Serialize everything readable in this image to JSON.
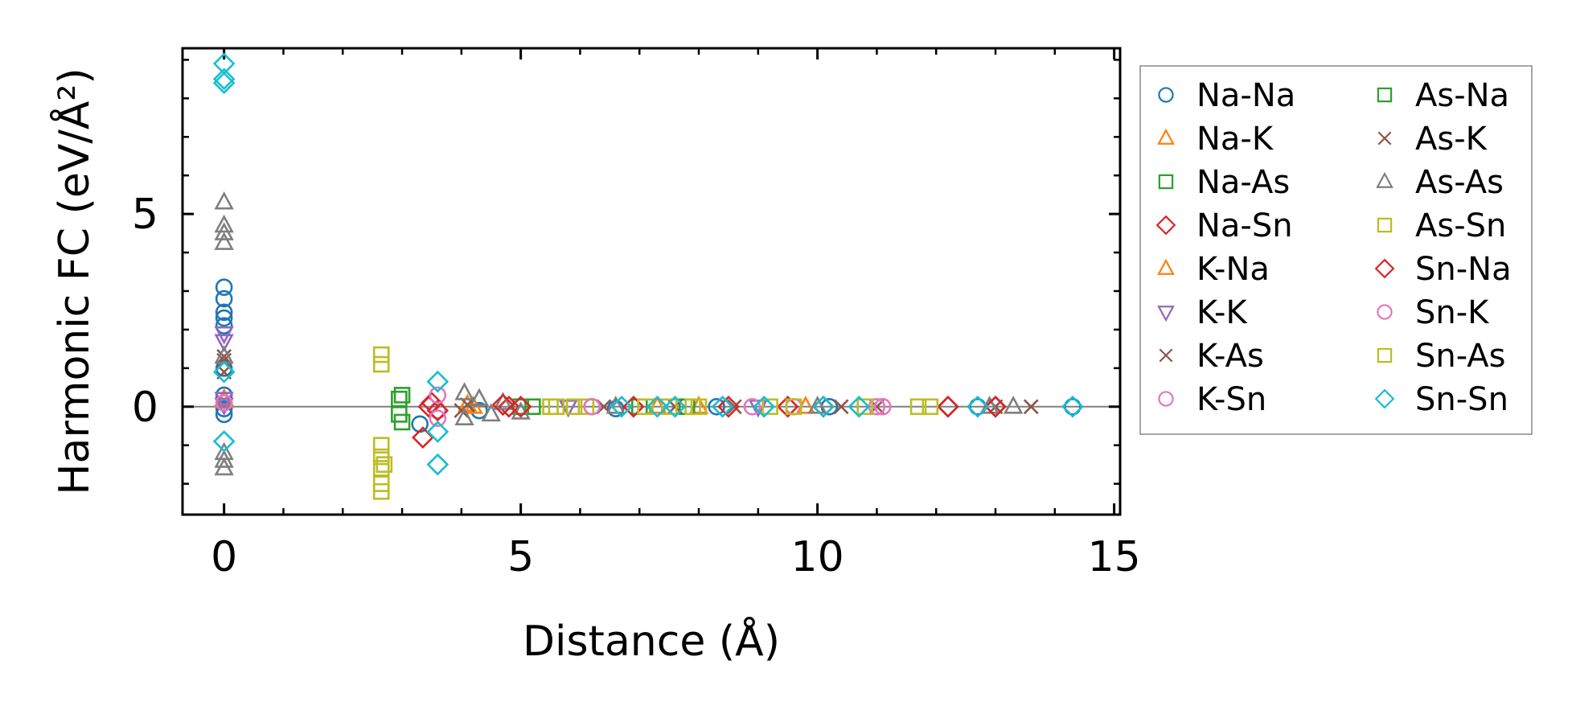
{
  "chart_data": {
    "type": "scatter",
    "title": "",
    "xlabel": "Distance (Å)",
    "ylabel": "Harmonic FC (eV/Å²)",
    "xlim": [
      -0.7,
      15.1
    ],
    "ylim": [
      -2.8,
      9.3
    ],
    "xticks": [
      0,
      5,
      10,
      15
    ],
    "xtick_labels": [
      "0",
      "5",
      "10",
      "15"
    ],
    "yticks": [
      0,
      5
    ],
    "ytick_labels": [
      "0",
      "5"
    ],
    "minor_xtick_step": 1,
    "minor_ytick_step": 1,
    "zero_line": true,
    "legend": {
      "location": "outside-right",
      "columns": 2
    },
    "series": [
      {
        "name": "Na-Na",
        "marker": "circle",
        "color": "#1f77b4",
        "points": [
          [
            0,
            3.1
          ],
          [
            0,
            2.8
          ],
          [
            0,
            2.45
          ],
          [
            0,
            2.3
          ],
          [
            0,
            2.1
          ],
          [
            0,
            1.0
          ],
          [
            0,
            0.3
          ],
          [
            0,
            0.1
          ],
          [
            0,
            -0.05
          ],
          [
            0,
            -0.2
          ],
          [
            3.3,
            -0.45
          ],
          [
            4.3,
            -0.1
          ],
          [
            6.6,
            -0.05
          ],
          [
            8.3,
            0.0
          ],
          [
            10.2,
            0.0
          ],
          [
            12.7,
            0.0
          ],
          [
            14.3,
            0.0
          ]
        ]
      },
      {
        "name": "Na-K",
        "marker": "triangle-up",
        "color": "#ff7f0e",
        "points": [
          [
            0,
            0.2
          ],
          [
            4.1,
            0.05
          ],
          [
            7.3,
            0.0
          ],
          [
            9.8,
            0.0
          ]
        ]
      },
      {
        "name": "Na-As",
        "marker": "square",
        "color": "#2ca02c",
        "points": [
          [
            3.0,
            0.3
          ],
          [
            5.0,
            0.0
          ],
          [
            7.0,
            0.0
          ]
        ]
      },
      {
        "name": "Na-Sn",
        "marker": "diamond",
        "color": "#d62728",
        "points": [
          [
            3.35,
            -0.8
          ],
          [
            3.5,
            0.1
          ],
          [
            4.8,
            0.0
          ],
          [
            6.9,
            0.0
          ],
          [
            9.5,
            0.0
          ],
          [
            12.2,
            0.0
          ],
          [
            13.0,
            0.0
          ]
        ]
      },
      {
        "name": "K-Na",
        "marker": "triangle-up",
        "color": "#ff7f0e",
        "points": [
          [
            0,
            0.15
          ],
          [
            4.2,
            0.0
          ],
          [
            8.0,
            0.0
          ]
        ]
      },
      {
        "name": "K-K",
        "marker": "triangle-down",
        "color": "#9467bd",
        "points": [
          [
            0,
            1.9
          ],
          [
            0,
            1.7
          ],
          [
            0,
            0.2
          ],
          [
            0,
            0.05
          ],
          [
            5.8,
            0.0
          ],
          [
            9.0,
            0.0
          ]
        ]
      },
      {
        "name": "K-As",
        "marker": "x",
        "color": "#8c564b",
        "points": [
          [
            0,
            1.3
          ],
          [
            4.0,
            -0.1
          ],
          [
            6.4,
            0.0
          ],
          [
            8.6,
            0.0
          ],
          [
            11.0,
            0.0
          ],
          [
            13.6,
            0.0
          ]
        ]
      },
      {
        "name": "K-Sn",
        "marker": "circle",
        "color": "#e377c2",
        "points": [
          [
            3.6,
            -0.1
          ],
          [
            6.2,
            0.0
          ],
          [
            9.6,
            0.0
          ],
          [
            11.1,
            0.0
          ]
        ]
      },
      {
        "name": "As-Na",
        "marker": "square",
        "color": "#2ca02c",
        "points": [
          [
            2.95,
            0.2
          ],
          [
            2.95,
            -0.2
          ],
          [
            3.0,
            -0.4
          ],
          [
            5.2,
            0.0
          ],
          [
            7.8,
            0.0
          ]
        ]
      },
      {
        "name": "As-K",
        "marker": "x",
        "color": "#8c564b",
        "points": [
          [
            0,
            1.2
          ],
          [
            0,
            0.9
          ],
          [
            4.1,
            0.05
          ],
          [
            7.6,
            0.0
          ],
          [
            10.4,
            0.0
          ],
          [
            13.0,
            0.0
          ]
        ]
      },
      {
        "name": "As-As",
        "marker": "triangle-up",
        "color": "#7f7f7f",
        "points": [
          [
            0,
            5.3
          ],
          [
            0,
            4.7
          ],
          [
            0,
            4.5
          ],
          [
            0,
            4.25
          ],
          [
            0,
            1.3
          ],
          [
            0,
            -1.2
          ],
          [
            0,
            -1.4
          ],
          [
            0,
            -1.6
          ],
          [
            4.05,
            0.35
          ],
          [
            4.05,
            -0.3
          ],
          [
            4.3,
            0.2
          ],
          [
            4.5,
            -0.2
          ],
          [
            4.7,
            0.1
          ],
          [
            5.0,
            -0.15
          ],
          [
            6.6,
            0.0
          ],
          [
            10.0,
            0.0
          ],
          [
            12.9,
            0.0
          ],
          [
            13.3,
            0.0
          ]
        ]
      },
      {
        "name": "As-Sn",
        "marker": "square",
        "color": "#bcbd22",
        "points": [
          [
            2.65,
            1.35
          ],
          [
            2.65,
            1.1
          ],
          [
            2.65,
            -1.0
          ],
          [
            2.65,
            -1.3
          ],
          [
            2.65,
            -1.6
          ],
          [
            2.65,
            -2.0
          ],
          [
            2.65,
            -2.2
          ],
          [
            5.5,
            0.0
          ],
          [
            6.1,
            0.0
          ],
          [
            7.9,
            0.0
          ],
          [
            9.2,
            0.0
          ],
          [
            11.7,
            0.0
          ]
        ]
      },
      {
        "name": "Sn-Na",
        "marker": "diamond",
        "color": "#d62728",
        "points": [
          [
            3.45,
            0.0
          ],
          [
            3.6,
            -0.1
          ],
          [
            4.7,
            0.05
          ],
          [
            5.0,
            0.0
          ],
          [
            8.5,
            0.0
          ],
          [
            10.1,
            0.0
          ],
          [
            12.2,
            0.0
          ],
          [
            13.0,
            0.0
          ]
        ]
      },
      {
        "name": "Sn-K",
        "marker": "circle",
        "color": "#e377c2",
        "points": [
          [
            0,
            0.1
          ],
          [
            3.6,
            0.3
          ],
          [
            3.6,
            -0.3
          ],
          [
            6.2,
            0.0
          ],
          [
            8.9,
            0.0
          ],
          [
            11.0,
            0.0
          ]
        ]
      },
      {
        "name": "Sn-As",
        "marker": "square",
        "color": "#bcbd22",
        "points": [
          [
            2.7,
            -1.5
          ],
          [
            5.6,
            0.0
          ],
          [
            5.9,
            0.0
          ],
          [
            7.1,
            0.0
          ],
          [
            7.5,
            0.0
          ],
          [
            8.0,
            0.0
          ],
          [
            9.6,
            0.0
          ],
          [
            10.8,
            0.0
          ],
          [
            11.9,
            0.0
          ]
        ]
      },
      {
        "name": "Sn-Sn",
        "marker": "diamond",
        "color": "#17becf",
        "points": [
          [
            0,
            8.9
          ],
          [
            0,
            8.5
          ],
          [
            0,
            8.4
          ],
          [
            0,
            0.9
          ],
          [
            0,
            -0.9
          ],
          [
            3.6,
            0.65
          ],
          [
            3.6,
            -0.65
          ],
          [
            3.6,
            -1.5
          ],
          [
            6.7,
            0.0
          ],
          [
            7.3,
            0.0
          ],
          [
            7.6,
            0.0
          ],
          [
            8.4,
            0.0
          ],
          [
            9.1,
            0.0
          ],
          [
            10.1,
            0.0
          ],
          [
            10.7,
            0.0
          ],
          [
            12.7,
            0.0
          ],
          [
            14.3,
            0.0
          ]
        ]
      }
    ]
  }
}
